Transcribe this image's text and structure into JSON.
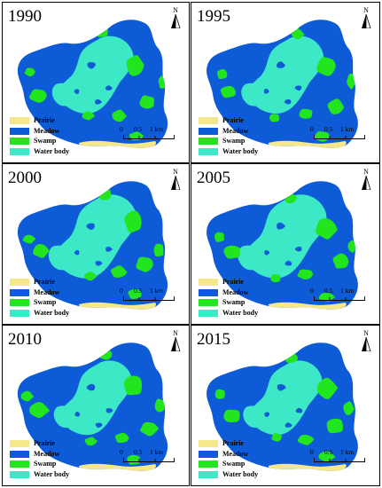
{
  "panels": [
    {
      "year": "1990"
    },
    {
      "year": "1995"
    },
    {
      "year": "2000"
    },
    {
      "year": "2005"
    },
    {
      "year": "2010"
    },
    {
      "year": "2015"
    }
  ],
  "north_label": "N",
  "legend": [
    {
      "label": "Prairie",
      "color": "#f5e88a"
    },
    {
      "label": "Meadow",
      "color": "#0d5bd6"
    },
    {
      "label": "Swamp",
      "color": "#22e51e"
    },
    {
      "label": "Water body",
      "color": "#3ce8c6"
    }
  ],
  "scale": {
    "ticks": [
      "0",
      "0.5",
      "1 km"
    ]
  }
}
